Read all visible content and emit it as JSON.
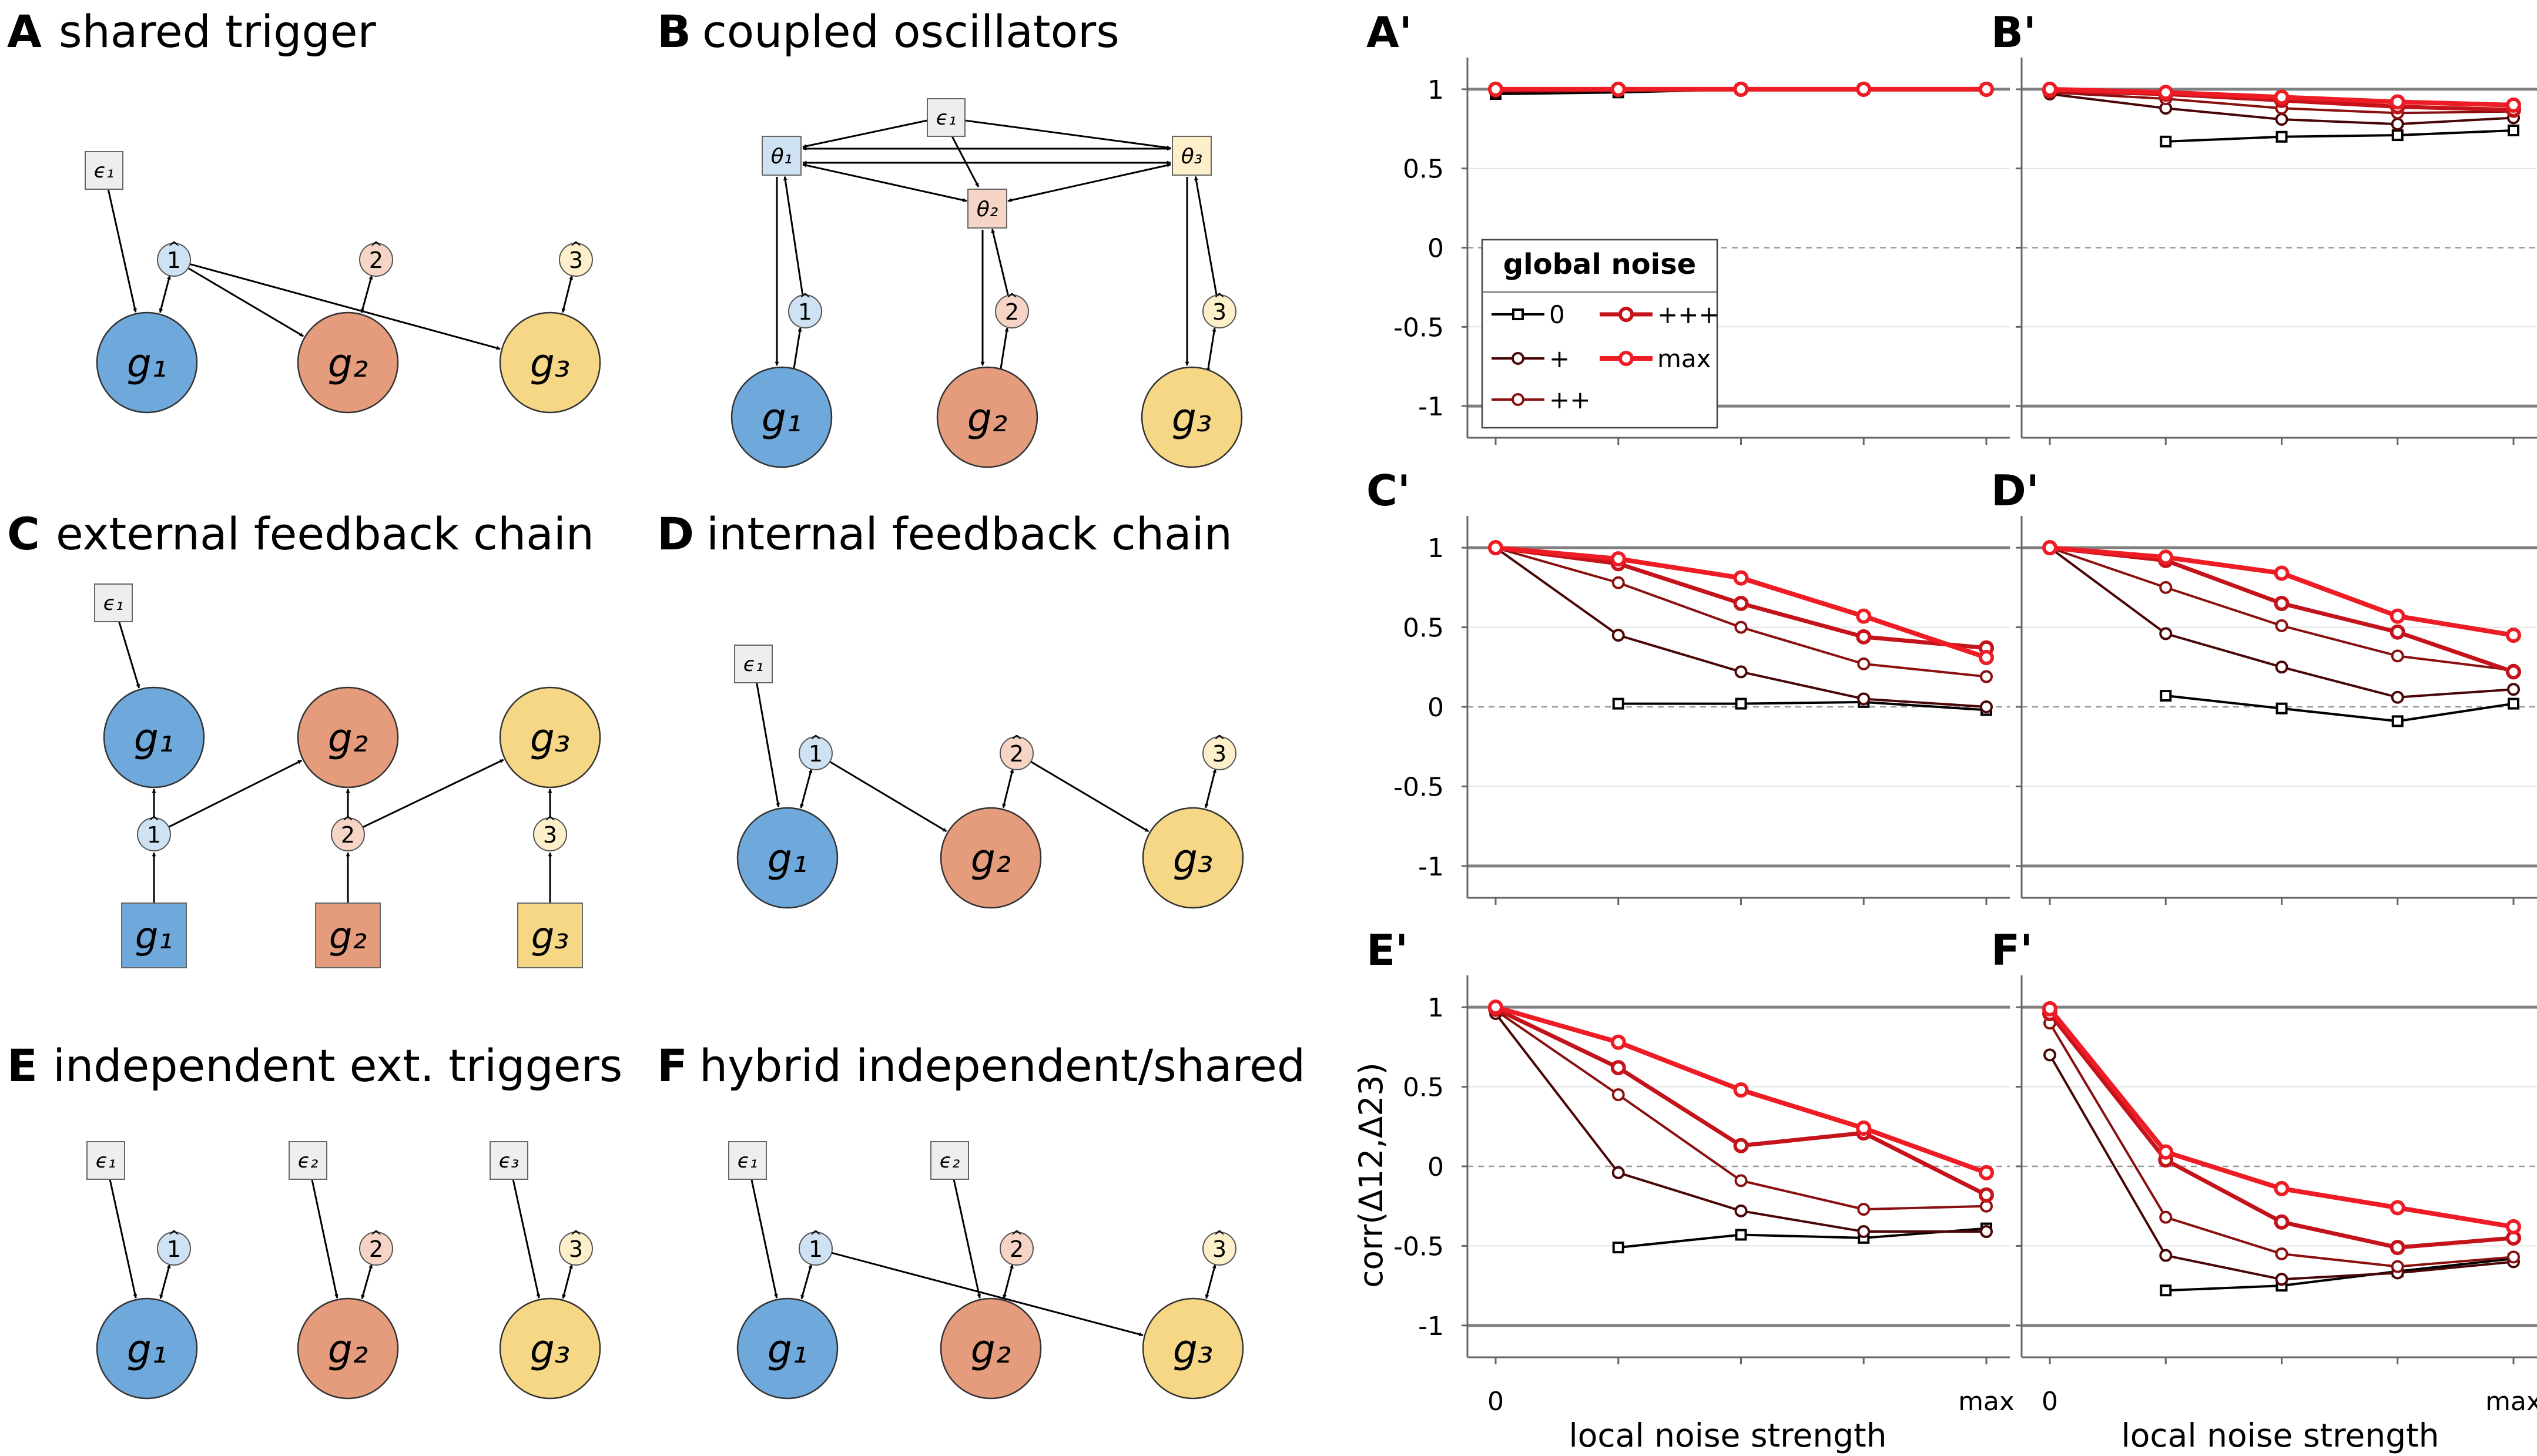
{
  "colors": {
    "blue": "#6fa8da",
    "blue_light": "#cfe2f3",
    "orange": "#e59c7c",
    "orange_light": "#f6d5c6",
    "yellow": "#f6d786",
    "yellow_light": "#fcefc9",
    "eps_box": "#eeeeee",
    "series_0": "#000000",
    "series_plus": "#4a0606",
    "series_pp": "#8a1010",
    "series_ppp": "#c4131a",
    "series_max": "#ee1c25",
    "ref_line": "#808080",
    "grid": "#e4e4e4"
  },
  "diagram": {
    "A": {
      "letter": "A",
      "title": "shared trigger"
    },
    "B": {
      "letter": "B",
      "title": "coupled oscillators"
    },
    "C": {
      "letter": "C",
      "title": "external feedback chain"
    },
    "D": {
      "letter": "D",
      "title": "internal feedback chain"
    },
    "E": {
      "letter": "E",
      "title": "independent ext. triggers"
    },
    "F": {
      "letter": "F",
      "title": "hybrid independent/shared"
    },
    "node_labels": {
      "g": [
        "g₁",
        "g₂",
        "g₃"
      ],
      "eps": [
        "ϵ₁",
        "ϵ₂",
        "ϵ₃"
      ],
      "theta": [
        "θ₁",
        "θ₂",
        "θ₃"
      ],
      "counter": [
        "1",
        "2",
        "3"
      ]
    }
  },
  "legend": {
    "title": "global noise",
    "entries": [
      "0",
      "+",
      "++",
      "+++",
      "max"
    ]
  },
  "chart_data": [
    {
      "panel": "A'",
      "type": "line",
      "x": [
        0,
        1,
        2,
        3,
        4
      ],
      "ylim": [
        -1.2,
        1.2
      ],
      "yticks": [
        1,
        0.5,
        0,
        -0.5,
        -1
      ],
      "yticklabels": [
        "1",
        "0.5",
        "0",
        "-0.5",
        "-1"
      ],
      "xticklabels": [
        "0",
        "max"
      ],
      "xlabel": "",
      "ylabel": "",
      "series": [
        {
          "name": "0",
          "values": [
            0.97,
            0.98,
            1.0,
            1.0,
            1.0
          ]
        },
        {
          "name": "+",
          "values": [
            0.98,
            0.99,
            1.0,
            1.0,
            1.0
          ]
        },
        {
          "name": "++",
          "values": [
            0.99,
            1.0,
            1.0,
            1.0,
            1.0
          ]
        },
        {
          "name": "+++",
          "values": [
            1.0,
            1.0,
            1.0,
            1.0,
            1.0
          ]
        },
        {
          "name": "max",
          "values": [
            1.0,
            1.0,
            1.0,
            1.0,
            1.0
          ]
        }
      ]
    },
    {
      "panel": "B'",
      "type": "line",
      "x": [
        0,
        1,
        2,
        3,
        4
      ],
      "ylim": [
        -1.2,
        1.2
      ],
      "yticks": [
        1,
        0.5,
        0,
        -0.5,
        -1
      ],
      "xticklabels": [
        "0",
        "max"
      ],
      "xlabel": "",
      "ylabel": "",
      "series": [
        {
          "name": "0",
          "values": [
            null,
            0.67,
            0.7,
            0.71,
            0.74
          ]
        },
        {
          "name": "+",
          "values": [
            0.97,
            0.88,
            0.81,
            0.78,
            0.82
          ]
        },
        {
          "name": "++",
          "values": [
            0.98,
            0.94,
            0.88,
            0.85,
            0.86
          ]
        },
        {
          "name": "+++",
          "values": [
            0.99,
            0.97,
            0.93,
            0.89,
            0.87
          ]
        },
        {
          "name": "max",
          "values": [
            1.0,
            0.98,
            0.95,
            0.92,
            0.9
          ]
        }
      ]
    },
    {
      "panel": "C'",
      "type": "line",
      "x": [
        0,
        1,
        2,
        3,
        4
      ],
      "ylim": [
        -1.2,
        1.2
      ],
      "yticks": [
        1,
        0.5,
        0,
        -0.5,
        -1
      ],
      "yticklabels": [
        "1",
        "0.5",
        "0",
        "-0.5",
        "-1"
      ],
      "xticklabels": [
        "0",
        "max"
      ],
      "xlabel": "",
      "ylabel": "",
      "series": [
        {
          "name": "0",
          "values": [
            null,
            0.02,
            0.02,
            0.03,
            -0.02
          ]
        },
        {
          "name": "+",
          "values": [
            1.0,
            0.45,
            0.22,
            0.05,
            0.0
          ]
        },
        {
          "name": "++",
          "values": [
            1.0,
            0.78,
            0.5,
            0.27,
            0.19
          ]
        },
        {
          "name": "+++",
          "values": [
            1.0,
            0.9,
            0.65,
            0.44,
            0.37
          ]
        },
        {
          "name": "max",
          "values": [
            1.0,
            0.93,
            0.81,
            0.57,
            0.31
          ]
        }
      ]
    },
    {
      "panel": "D'",
      "type": "line",
      "x": [
        0,
        1,
        2,
        3,
        4
      ],
      "ylim": [
        -1.2,
        1.2
      ],
      "yticks": [
        1,
        0.5,
        0,
        -0.5,
        -1
      ],
      "xticklabels": [
        "0",
        "max"
      ],
      "xlabel": "",
      "ylabel": "",
      "series": [
        {
          "name": "0",
          "values": [
            null,
            0.07,
            -0.01,
            -0.09,
            0.02
          ]
        },
        {
          "name": "+",
          "values": [
            1.0,
            0.46,
            0.25,
            0.06,
            0.11
          ]
        },
        {
          "name": "++",
          "values": [
            1.0,
            0.75,
            0.51,
            0.32,
            0.23
          ]
        },
        {
          "name": "+++",
          "values": [
            1.0,
            0.92,
            0.65,
            0.47,
            0.22
          ]
        },
        {
          "name": "max",
          "values": [
            1.0,
            0.94,
            0.84,
            0.57,
            0.45
          ]
        }
      ]
    },
    {
      "panel": "E'",
      "type": "line",
      "x": [
        0,
        1,
        2,
        3,
        4
      ],
      "ylim": [
        -1.2,
        1.2
      ],
      "yticks": [
        1,
        0.5,
        0,
        -0.5,
        -1
      ],
      "yticklabels": [
        "1",
        "0.5",
        "0",
        "-0.5",
        "-1"
      ],
      "xticklabels": [
        "0",
        "max"
      ],
      "xlabel": "local noise strength",
      "ylabel": "corr(Δ12,Δ23)",
      "series": [
        {
          "name": "0",
          "values": [
            null,
            -0.51,
            -0.43,
            -0.45,
            -0.39
          ]
        },
        {
          "name": "+",
          "values": [
            0.96,
            -0.04,
            -0.28,
            -0.41,
            -0.41
          ]
        },
        {
          "name": "++",
          "values": [
            0.98,
            0.45,
            -0.09,
            -0.27,
            -0.25
          ]
        },
        {
          "name": "+++",
          "values": [
            0.99,
            0.62,
            0.13,
            0.21,
            -0.18
          ]
        },
        {
          "name": "max",
          "values": [
            1.0,
            0.78,
            0.48,
            0.24,
            -0.04
          ]
        }
      ]
    },
    {
      "panel": "F'",
      "type": "line",
      "x": [
        0,
        1,
        2,
        3,
        4
      ],
      "ylim": [
        -1.2,
        1.2
      ],
      "yticks": [
        1,
        0.5,
        0,
        -0.5,
        -1
      ],
      "xticklabels": [
        "0",
        "max"
      ],
      "xlabel": "local noise strength",
      "ylabel": "",
      "series": [
        {
          "name": "0",
          "values": [
            null,
            -0.78,
            -0.75,
            -0.66,
            -0.58
          ]
        },
        {
          "name": "+",
          "values": [
            0.7,
            -0.56,
            -0.71,
            -0.67,
            -0.6
          ]
        },
        {
          "name": "++",
          "values": [
            0.9,
            -0.32,
            -0.55,
            -0.63,
            -0.57
          ]
        },
        {
          "name": "+++",
          "values": [
            0.96,
            0.04,
            -0.35,
            -0.51,
            -0.45
          ]
        },
        {
          "name": "max",
          "values": [
            0.99,
            0.09,
            -0.14,
            -0.26,
            -0.38
          ]
        }
      ]
    }
  ]
}
